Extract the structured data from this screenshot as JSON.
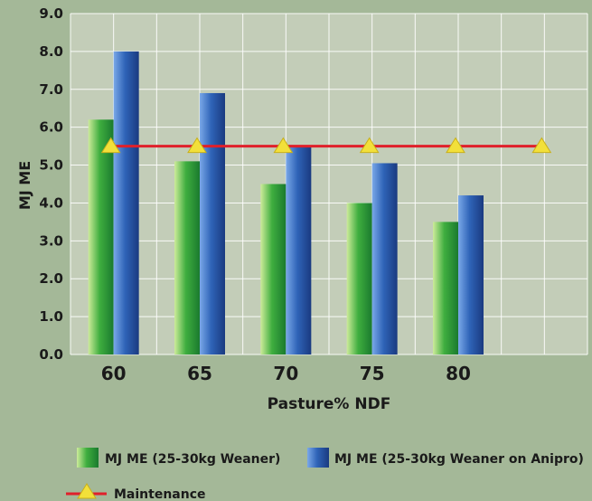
{
  "chart_data": {
    "type": "bar",
    "title": "",
    "xlabel": "Pasture% NDF",
    "ylabel": "MJ ME",
    "categories": [
      "60",
      "65",
      "70",
      "75",
      "80",
      ""
    ],
    "ylim": [
      0,
      9
    ],
    "yticks": [
      "0.0",
      "1.0",
      "2.0",
      "3.0",
      "4.0",
      "5.0",
      "6.0",
      "7.0",
      "8.0",
      "9.0"
    ],
    "grid": true,
    "legend_position": "bottom",
    "series": [
      {
        "name": "MJ ME (25-30kg Weaner)",
        "values": [
          6.2,
          5.1,
          4.5,
          4.0,
          3.5,
          null
        ],
        "color": "#3aa63a"
      },
      {
        "name": "MJ ME (25-30kg Weaner on Anipro)",
        "values": [
          8.0,
          6.9,
          5.5,
          5.05,
          4.2,
          null
        ],
        "color": "#2858a8"
      }
    ],
    "line_series": [
      {
        "name": "Maintenance",
        "values": [
          5.5,
          5.5,
          5.5,
          5.5,
          5.5,
          5.5
        ],
        "line_color": "#e0202a",
        "marker_color": "#f2e03a"
      }
    ]
  }
}
